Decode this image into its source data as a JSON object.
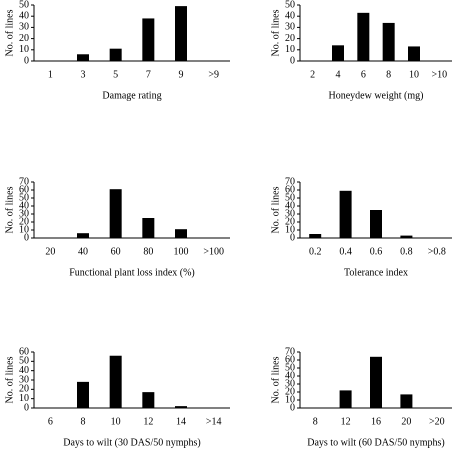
{
  "chart_data": [
    {
      "type": "bar",
      "x_label": "Damage rating",
      "y_label": "No. of lines",
      "categories": [
        "1",
        "3",
        "5",
        "7",
        "9",
        ">9"
      ],
      "values": [
        0,
        6,
        11,
        38,
        49,
        0
      ],
      "color": "#000000",
      "ylim": [
        0,
        50
      ],
      "yticks": [
        0,
        10,
        20,
        30,
        40,
        50
      ]
    },
    {
      "type": "bar",
      "x_label": "Honeydew weight (mg)",
      "y_label": "No. of lines",
      "categories": [
        "2",
        "4",
        "6",
        "8",
        "10",
        ">10"
      ],
      "values": [
        0,
        14,
        43,
        34,
        13,
        0
      ],
      "color": "#000000",
      "ylim": [
        0,
        50
      ],
      "yticks": [
        0,
        10,
        20,
        30,
        40,
        50
      ]
    },
    {
      "type": "bar",
      "x_label": "Functional plant loss index (%)",
      "y_label": "No. of lines",
      "categories": [
        "20",
        "40",
        "60",
        "80",
        "100",
        ">100"
      ],
      "values": [
        0,
        6,
        61,
        25,
        11,
        0
      ],
      "color": "#000000",
      "ylim": [
        0,
        70
      ],
      "yticks": [
        0,
        10,
        20,
        30,
        40,
        50,
        60,
        70
      ]
    },
    {
      "type": "bar",
      "x_label": "Tolerance index",
      "y_label": "No. of lines",
      "categories": [
        "0.2",
        "0.4",
        "0.6",
        "0.8",
        ">0.8"
      ],
      "values": [
        5,
        59,
        35,
        3,
        0
      ],
      "color": "#000000",
      "ylim": [
        0,
        70
      ],
      "yticks": [
        0,
        10,
        20,
        30,
        40,
        50,
        60,
        70
      ]
    },
    {
      "type": "bar",
      "x_label": "Days to wilt (30 DAS/50 nymphs)",
      "y_label": "No. of lines",
      "categories": [
        "6",
        "8",
        "10",
        "12",
        "14",
        ">14"
      ],
      "values": [
        0,
        28,
        56,
        17,
        2,
        0
      ],
      "color": "#000000",
      "ylim": [
        0,
        60
      ],
      "yticks": [
        0,
        10,
        20,
        30,
        40,
        50,
        60
      ]
    },
    {
      "type": "bar",
      "x_label": "Days to wilt (60 DAS/50 nymphs)",
      "y_label": "No. of lines",
      "categories": [
        "8",
        "12",
        "16",
        "20",
        ">20"
      ],
      "values": [
        0,
        22,
        64,
        17,
        0
      ],
      "color": "#000000",
      "ylim": [
        0,
        70
      ],
      "yticks": [
        0,
        10,
        20,
        30,
        40,
        50,
        60,
        70
      ]
    }
  ]
}
